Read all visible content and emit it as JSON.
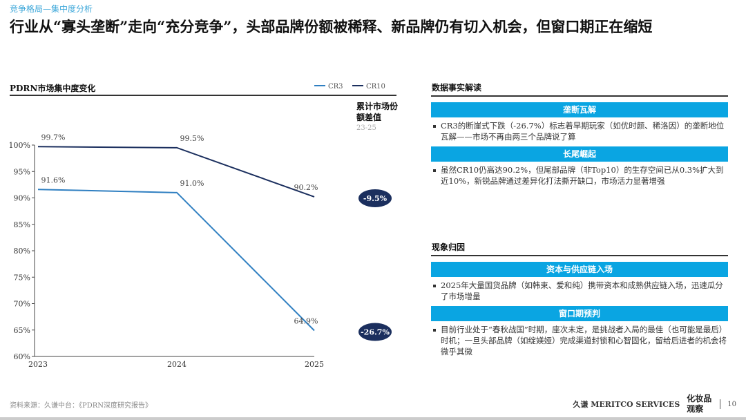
{
  "header": {
    "breadcrumb": "竞争格局—集中度分析",
    "title": "行业从“寡头垄断”走向“充分竞争”，头部品牌份额被稀释、新品牌仍有切入机会，但窗口期正在缩短"
  },
  "chart_data": {
    "type": "line",
    "title": "PDRN市场集中度变化",
    "categories": [
      "2023",
      "2024",
      "2025"
    ],
    "series": [
      {
        "name": "CR3",
        "values": [
          91.6,
          91.0,
          64.9
        ],
        "color": "#2f7fc1"
      },
      {
        "name": "CR10",
        "values": [
          99.7,
          99.5,
          90.2
        ],
        "color": "#1b2f5e"
      }
    ],
    "data_labels": {
      "CR3": [
        "91.6%",
        "91.0%",
        "64.9%"
      ],
      "CR10": [
        "99.7%",
        "99.5%",
        "90.2%"
      ]
    },
    "ylim": [
      60,
      100
    ],
    "yticks": [
      "60%",
      "65%",
      "70%",
      "75%",
      "80%",
      "85%",
      "90%",
      "95%",
      "100%"
    ],
    "legend": "top-right",
    "grid": false,
    "diff_header": {
      "title": "累计市场份额差值",
      "period": "23-25"
    },
    "diffs": {
      "CR10": "-9.5%",
      "CR3": "-26.7%"
    }
  },
  "right": {
    "facts_title": "数据事实解读",
    "facts": [
      {
        "head": "垄断瓦解",
        "text": "CR3的断崖式下跌（-26.7%）标志着早期玩家（如优时颜、稀洛因）的垄断地位瓦解——市场不再由两三个品牌说了算"
      },
      {
        "head": "长尾崛起",
        "text": "虽然CR10仍高达90.2%，但尾部品牌（非Top10）的生存空间已从0.3%扩大到近10%，新锐品牌通过差异化打法撕开缺口，市场活力显著增强"
      }
    ],
    "causes_title": "现象归因",
    "causes": [
      {
        "head": "资本与供应链入场",
        "text": "2025年大量国货品牌（如韩束、爱和纯）携带资本和成熟供应链入场，迅速瓜分了市场增量"
      },
      {
        "head": "窗口期预判",
        "text": "目前行业处于“春秋战国”时期，座次未定，是挑战者入局的最佳（也可能是最后）时机；一旦头部品牌（如绽媄娅）完成渠道封锁和心智固化，留给后进者的机会将微乎其微"
      }
    ]
  },
  "footer": {
    "source": "资料来源：久谦中台：《PDRN深度研究报告》",
    "logo1": "久谦 MERITCO SERVICES",
    "logo2": "化妆品观察",
    "page": "10"
  }
}
